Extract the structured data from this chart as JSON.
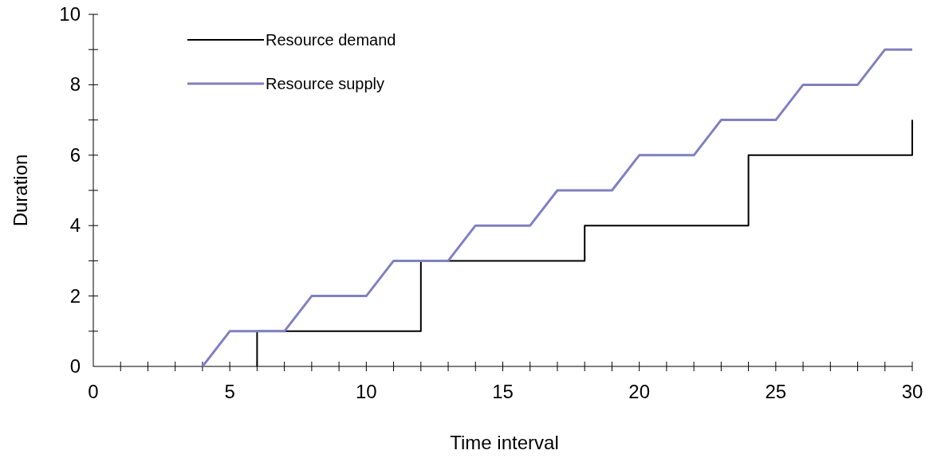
{
  "chart_data": {
    "type": "line",
    "xlabel": "Time interval",
    "ylabel": "Duration",
    "xlim": [
      0,
      30
    ],
    "ylim": [
      0,
      10
    ],
    "xticks": [
      0,
      {
        "value": 1,
        "label": null
      },
      {
        "value": 2,
        "label": null
      },
      {
        "value": 3,
        "label": null
      },
      {
        "value": 4,
        "label": null
      },
      5,
      {
        "value": 6,
        "label": null
      },
      {
        "value": 7,
        "label": null
      },
      {
        "value": 8,
        "label": null
      },
      {
        "value": 9,
        "label": null
      },
      10,
      {
        "value": 11,
        "label": null
      },
      {
        "value": 12,
        "label": null
      },
      {
        "value": 13,
        "label": null
      },
      {
        "value": 14,
        "label": null
      },
      15,
      {
        "value": 16,
        "label": null
      },
      {
        "value": 17,
        "label": null
      },
      {
        "value": 18,
        "label": null
      },
      {
        "value": 19,
        "label": null
      },
      20,
      {
        "value": 21,
        "label": null
      },
      {
        "value": 22,
        "label": null
      },
      {
        "value": 23,
        "label": null
      },
      {
        "value": 24,
        "label": null
      },
      25,
      {
        "value": 26,
        "label": null
      },
      {
        "value": 27,
        "label": null
      },
      {
        "value": 28,
        "label": null
      },
      {
        "value": 29,
        "label": null
      },
      30
    ],
    "yticks": [
      0,
      {
        "value": 1,
        "label": null
      },
      2,
      {
        "value": 3,
        "label": null
      },
      4,
      {
        "value": 5,
        "label": null
      },
      6,
      {
        "value": 7,
        "label": null
      },
      8,
      {
        "value": 9,
        "label": null
      },
      10
    ],
    "grid": false,
    "legend": "top left",
    "marker": "none",
    "line_style": "solid",
    "series": [
      {
        "name": "Resource demand",
        "color": "#000000",
        "x": [
          6,
          6,
          12,
          12,
          18,
          18,
          24,
          24,
          30,
          30
        ],
        "values": [
          0,
          1,
          1,
          3,
          3,
          4,
          4,
          6,
          6,
          7
        ]
      },
      {
        "name": "Resource supply",
        "color": "#8080c0",
        "x": [
          4,
          5,
          7,
          8,
          10,
          11,
          13,
          14,
          16,
          17,
          19,
          20,
          22,
          23,
          25,
          26,
          28,
          29,
          30
        ],
        "values": [
          0,
          1,
          1,
          2,
          2,
          3,
          3,
          4,
          4,
          5,
          5,
          6,
          6,
          7,
          7,
          8,
          8,
          9,
          9
        ]
      }
    ]
  }
}
